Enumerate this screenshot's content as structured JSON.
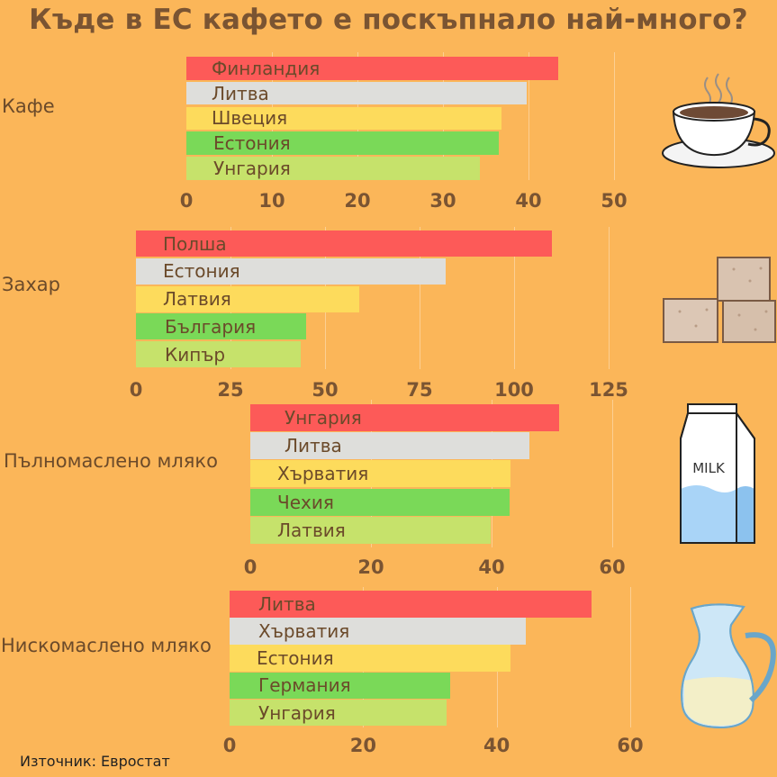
{
  "title": "Къде в ЕС кафето е поскъпнало най-много?",
  "source": "Източник: Евростат",
  "colors": {
    "background": "#FBB659",
    "rank1": "#FD5A58",
    "rank2": "#DEDEDB",
    "rank3": "#FDDB5C",
    "rank4": "#7AD958",
    "rank5": "#C6E26B"
  },
  "chart_data": [
    {
      "type": "bar",
      "orientation": "horizontal",
      "label": "Кафе",
      "categories": [
        "Финландия",
        "Литва",
        "Швеция",
        "Естония",
        "Унгария"
      ],
      "values": [
        43.5,
        39.8,
        36.8,
        36.5,
        34.3
      ],
      "xlim": [
        0,
        50
      ],
      "ticks": [
        0,
        10,
        20,
        30,
        40,
        50
      ],
      "illustration": "coffee-cup-icon"
    },
    {
      "type": "bar",
      "orientation": "horizontal",
      "label": "Захар",
      "categories": [
        "Полша",
        "Естония",
        "Латвия",
        "България",
        "Кипър"
      ],
      "values": [
        110,
        82,
        59,
        45,
        43.5
      ],
      "xlim": [
        0,
        125
      ],
      "ticks": [
        0,
        25,
        50,
        75,
        100,
        125
      ],
      "illustration": "sugar-cubes-icon"
    },
    {
      "type": "bar",
      "orientation": "horizontal",
      "label": "Пълномаслено мляко",
      "categories": [
        "Унгария",
        "Литва",
        "Хърватия",
        "Чехия",
        "Латвия"
      ],
      "values": [
        51.2,
        46.3,
        43.1,
        43.0,
        39.8
      ],
      "xlim": [
        0,
        60
      ],
      "ticks": [
        0,
        20,
        40,
        60
      ],
      "illustration": "milk-carton-icon"
    },
    {
      "type": "bar",
      "orientation": "horizontal",
      "label": "Нискомаслено мляко",
      "categories": [
        "Литва",
        "Хърватия",
        "Естония",
        "Германия",
        "Унгария"
      ],
      "values": [
        54.2,
        44.3,
        42.0,
        33.0,
        32.5
      ],
      "xlim": [
        0,
        60
      ],
      "ticks": [
        0,
        20,
        40,
        60
      ],
      "illustration": "milk-jug-icon"
    }
  ]
}
